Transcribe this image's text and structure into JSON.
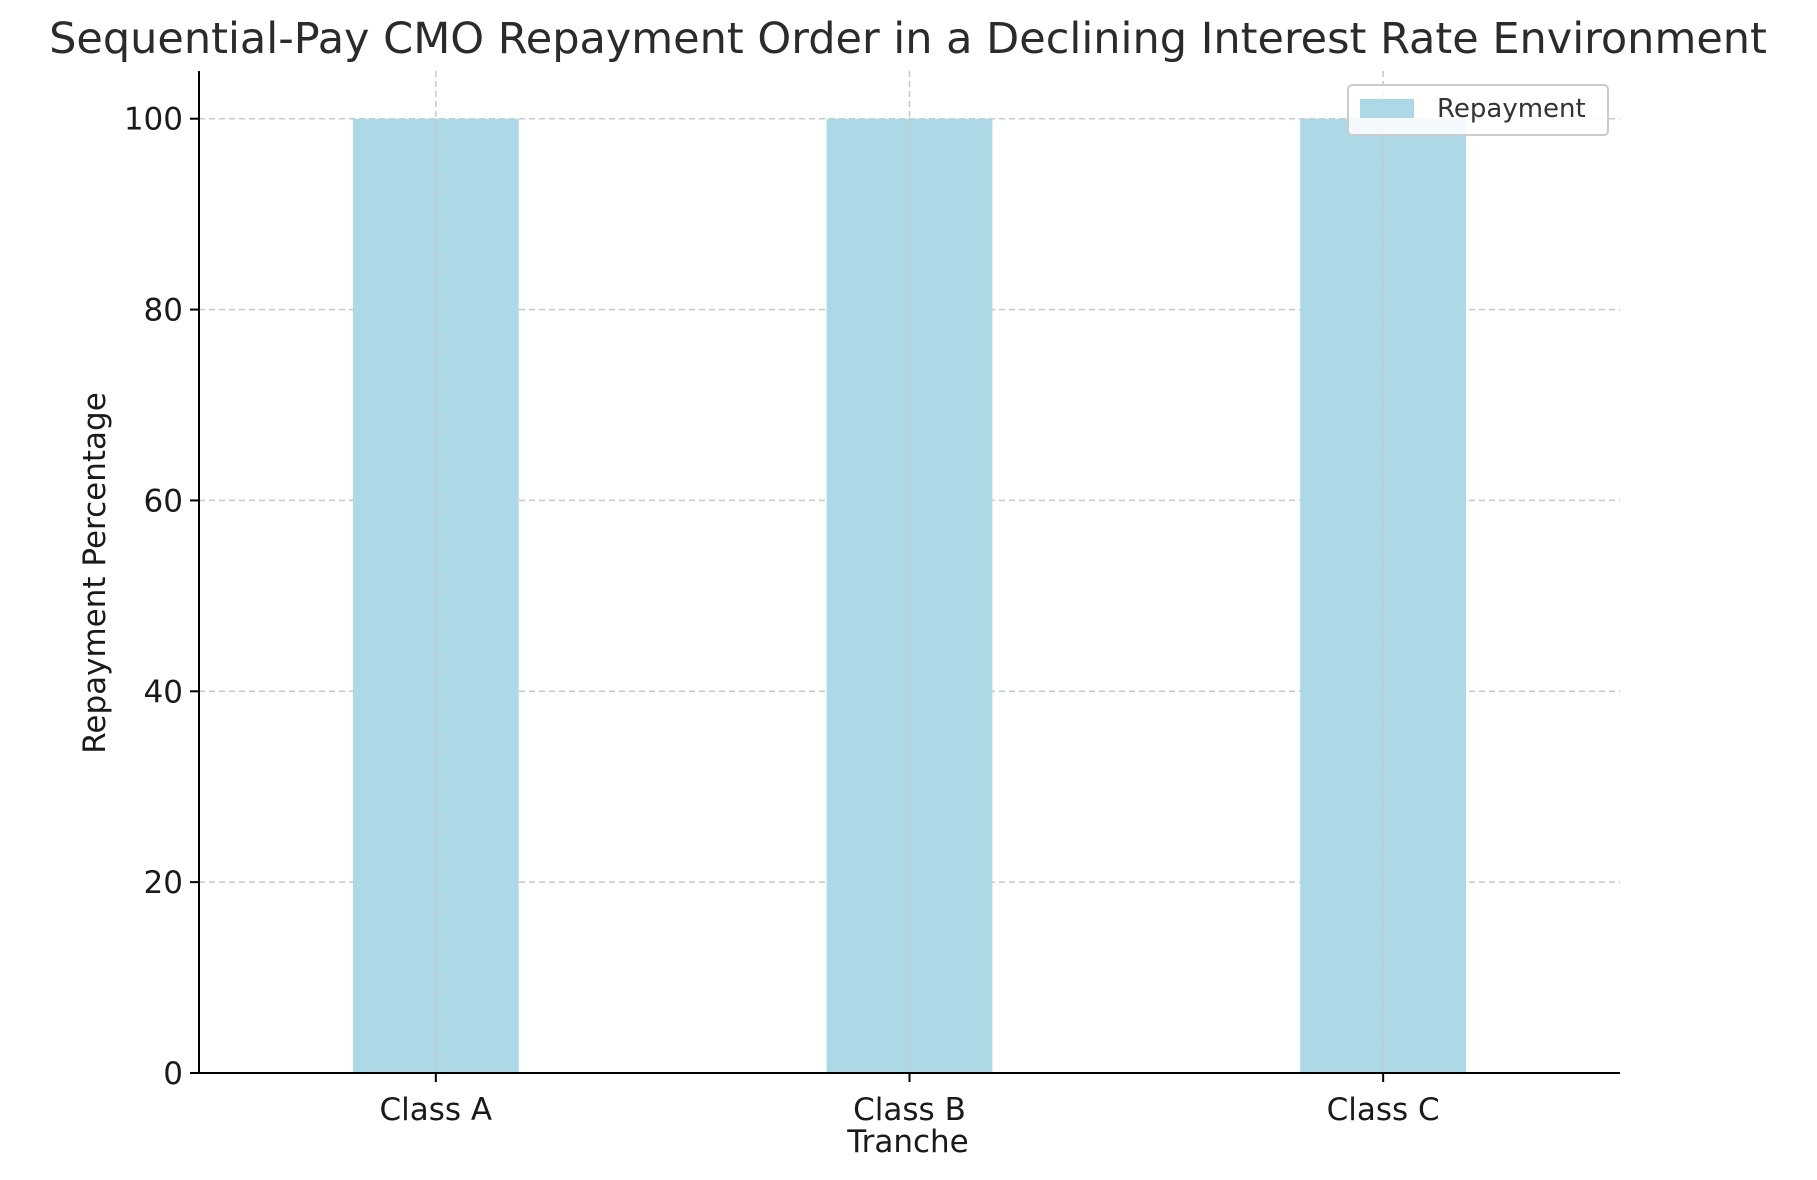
{
  "chart_data": {
    "type": "bar",
    "title": "Sequential-Pay CMO Repayment Order in a Declining Interest Rate Environment",
    "xlabel": "Tranche",
    "ylabel": "Repayment Percentage",
    "categories": [
      "Class A",
      "Class B",
      "Class C"
    ],
    "series": [
      {
        "name": "Repayment",
        "values": [
          100,
          100,
          100
        ],
        "color": "#add8e6"
      }
    ],
    "ylim": [
      0,
      105
    ],
    "yticks": [
      0,
      20,
      40,
      60,
      80,
      100
    ],
    "grid": true,
    "legend_position": "top-right"
  }
}
